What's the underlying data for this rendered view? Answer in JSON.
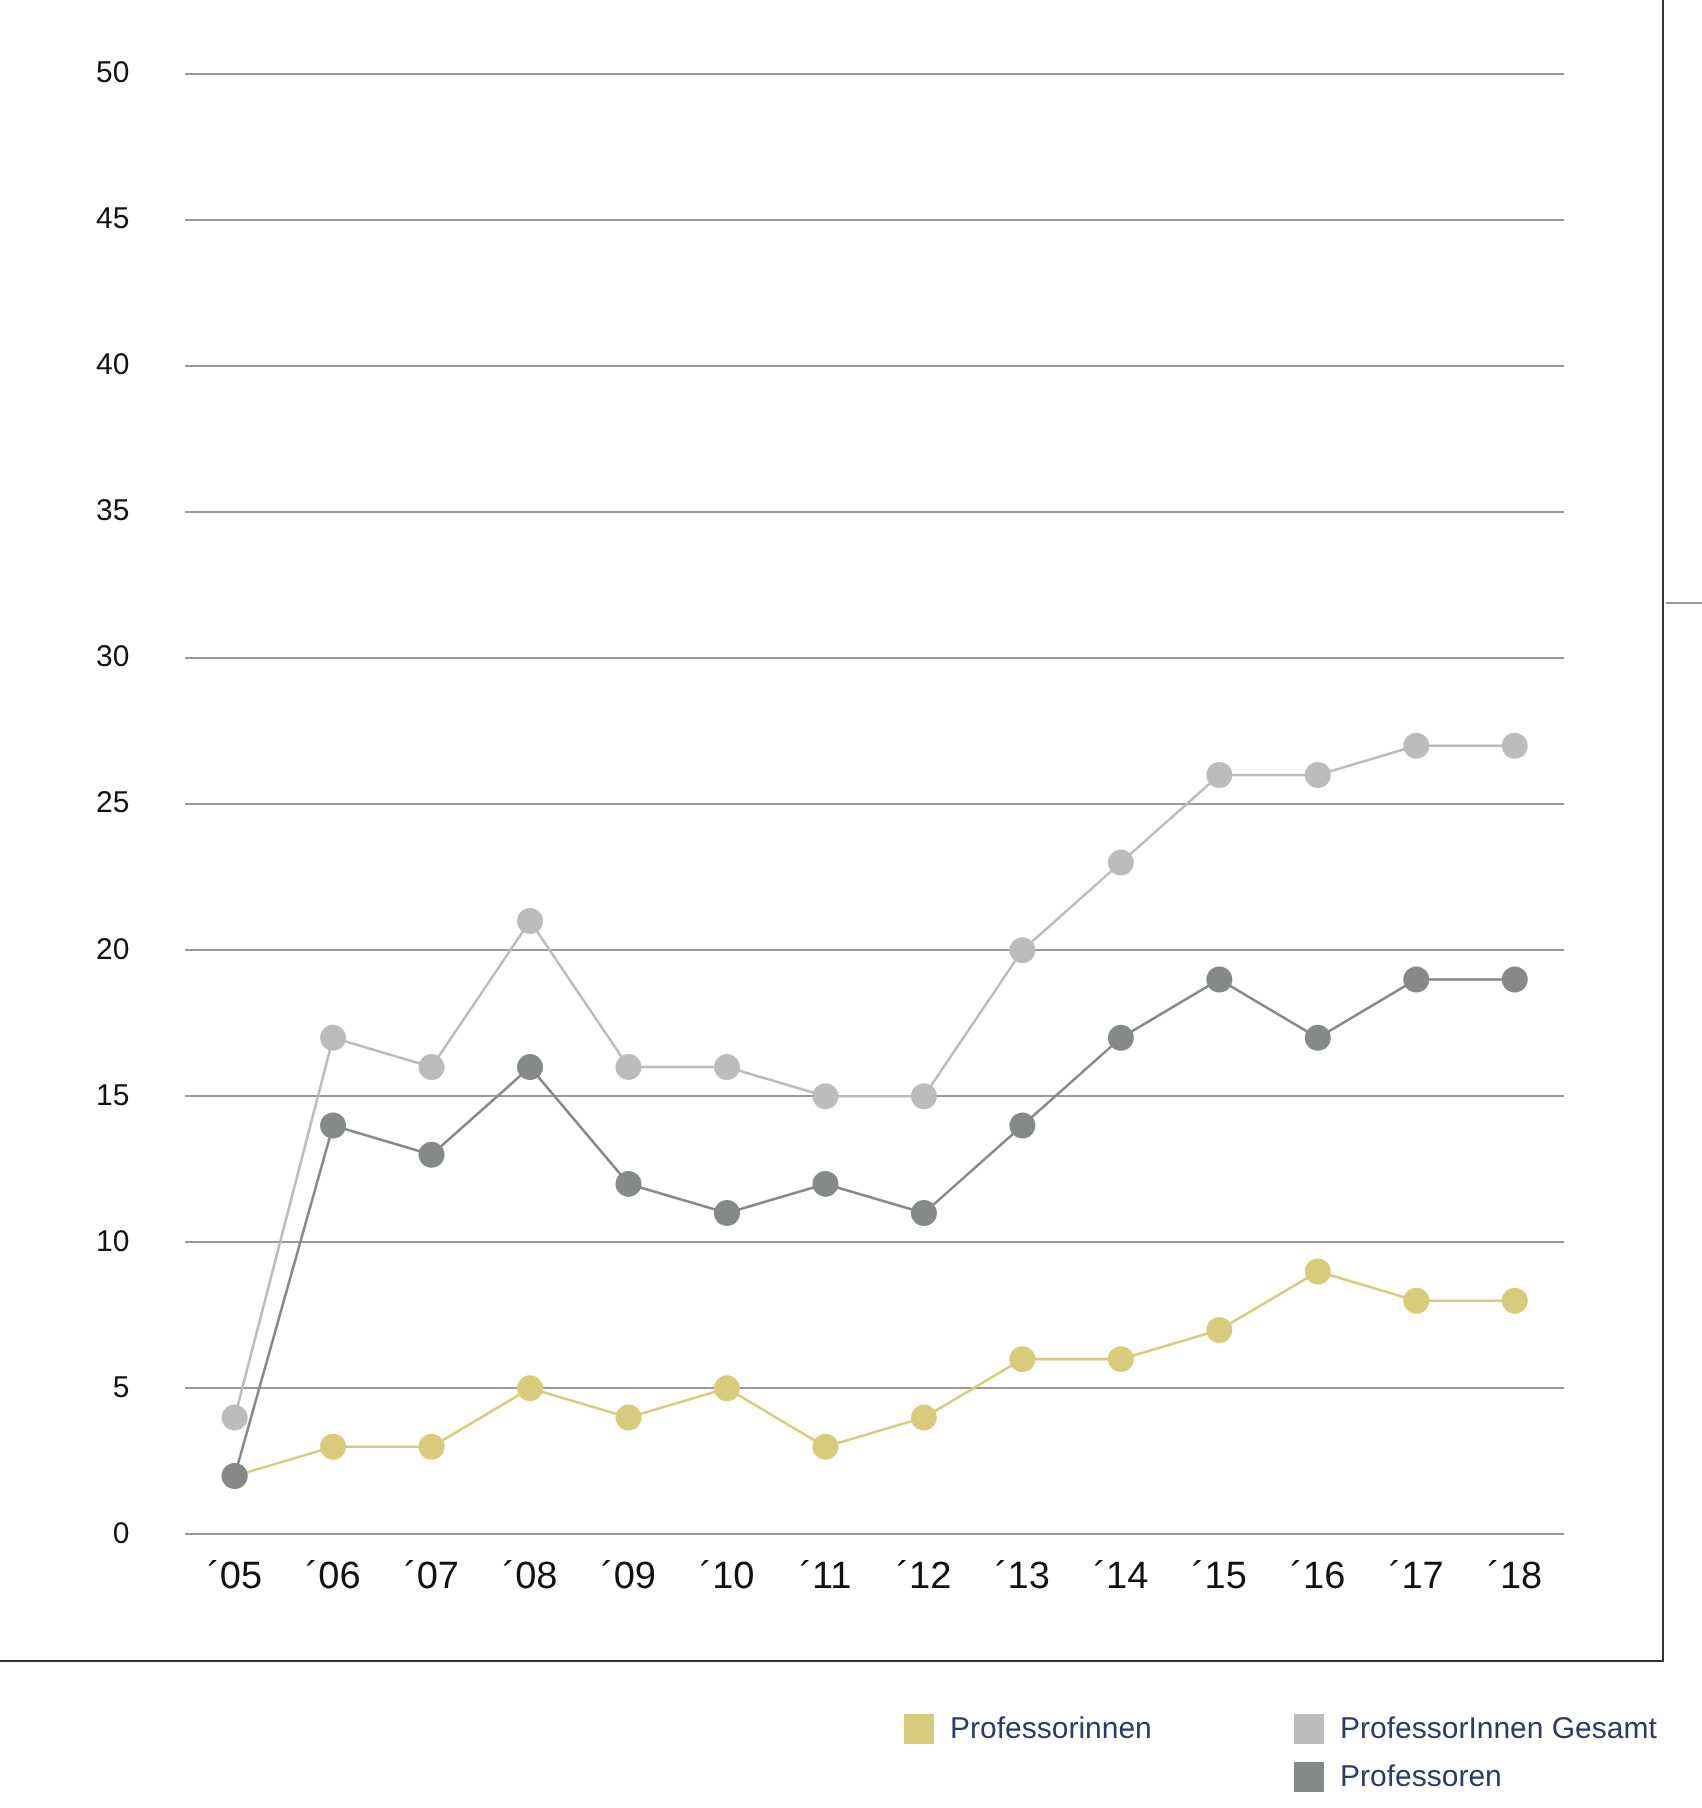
{
  "chart_data": {
    "type": "line",
    "categories": [
      "´05",
      "´06",
      "´07",
      "´08",
      "´09",
      "´10",
      "´11",
      "´12",
      "´13",
      "´14",
      "´15",
      "´16",
      "´17",
      "´18"
    ],
    "series": [
      {
        "name": "Professorinnen",
        "color": "#d8cc7c",
        "values": [
          2,
          3,
          3,
          5,
          4,
          5,
          3,
          4,
          6,
          6,
          7,
          9,
          8,
          8
        ]
      },
      {
        "name": "ProfessorInnen Gesamt",
        "color": "#bbbdbc",
        "values": [
          4,
          17,
          16,
          21,
          16,
          16,
          15,
          15,
          20,
          23,
          26,
          26,
          27,
          27
        ]
      },
      {
        "name": "Professoren",
        "color": "#858a88",
        "values": [
          2,
          14,
          13,
          16,
          12,
          11,
          12,
          11,
          14,
          17,
          19,
          17,
          19,
          19
        ]
      }
    ],
    "ylim": [
      0,
      50
    ],
    "yticks": [
      0,
      5,
      10,
      15,
      20,
      25,
      30,
      35,
      40,
      45,
      50
    ],
    "grid": "y",
    "legend": "bottom right",
    "marker": "circle",
    "line_style": "solid"
  }
}
